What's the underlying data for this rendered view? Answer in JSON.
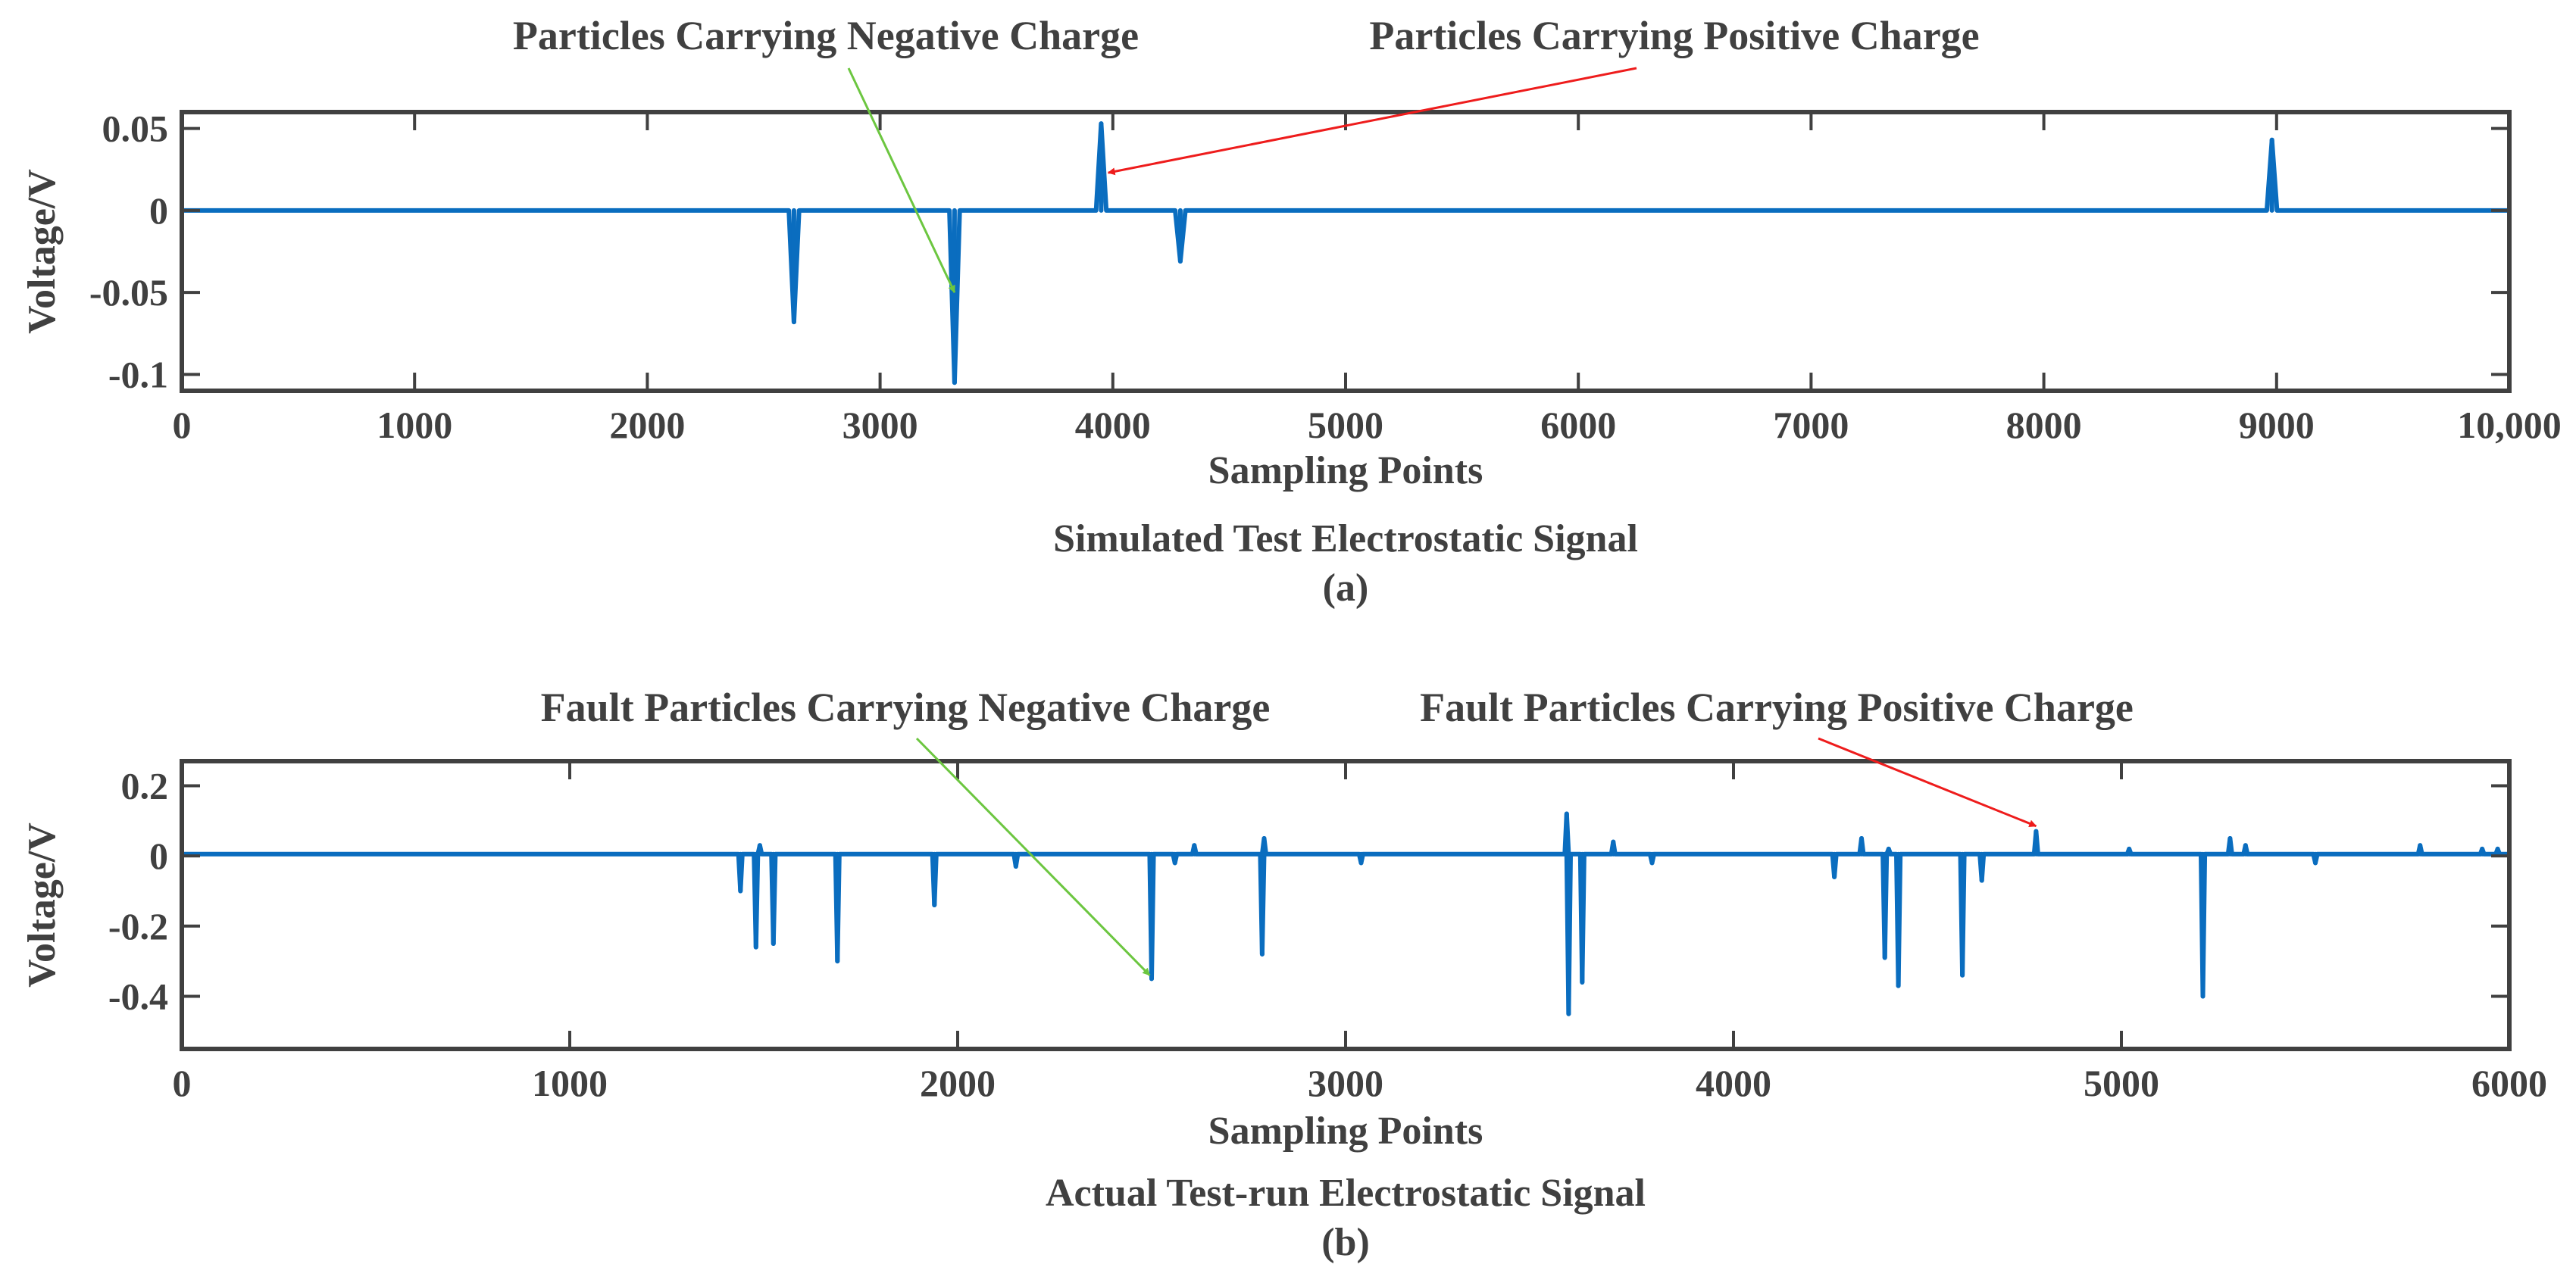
{
  "colors": {
    "signal": "#0a6dbf",
    "axis": "#404040",
    "negative_arrow": "#6cc640",
    "positive_arrow": "#ee1c1c"
  },
  "chart_data": [
    {
      "type": "line",
      "panel": "a",
      "caption": "Simulated Test Electrostatic Signal",
      "panel_label": "(a)",
      "xlabel": "Sampling Points",
      "ylabel": "Voltage/V",
      "xlim": [
        0,
        10000
      ],
      "ylim": [
        -0.11,
        0.06
      ],
      "xticks": [
        0,
        1000,
        2000,
        3000,
        4000,
        5000,
        6000,
        7000,
        8000,
        9000,
        10000
      ],
      "xtick_labels": [
        "0",
        "1000",
        "2000",
        "3000",
        "4000",
        "5000",
        "6000",
        "7000",
        "8000",
        "9000",
        "10,000"
      ],
      "yticks": [
        0.05,
        0,
        -0.05,
        -0.1
      ],
      "ytick_labels": [
        "0.05",
        "0",
        "-0.05",
        "-0.1"
      ],
      "series": [
        {
          "name": "Electrostatic signal",
          "baseline": 0,
          "pulse_width": 22,
          "pulses": [
            {
              "x": 2630,
              "y": -0.068
            },
            {
              "x": 3320,
              "y": -0.105
            },
            {
              "x": 3950,
              "y": 0.053
            },
            {
              "x": 4290,
              "y": -0.031
            },
            {
              "x": 8980,
              "y": 0.043
            }
          ]
        }
      ],
      "annotations": [
        {
          "text": "Particles Carrying Negative Charge",
          "kind": "negative",
          "target": {
            "x": 3320,
            "y": -0.05
          }
        },
        {
          "text": "Particles Carrying Positive Charge",
          "kind": "positive",
          "target": {
            "x": 3980,
            "y": 0.023
          }
        }
      ]
    },
    {
      "type": "line",
      "panel": "b",
      "caption": "Actual Test-run Electrostatic Signal",
      "panel_label": "(b)",
      "xlabel": "Sampling Points",
      "ylabel": "Voltage/V",
      "xlim": [
        0,
        6000
      ],
      "ylim": [
        -0.55,
        0.27
      ],
      "xticks": [
        0,
        1000,
        2000,
        3000,
        4000,
        5000,
        6000
      ],
      "xtick_labels": [
        "0",
        "1000",
        "2000",
        "3000",
        "4000",
        "5000",
        "6000"
      ],
      "yticks": [
        0.2,
        0,
        -0.2,
        -0.4
      ],
      "ytick_labels": [
        "0.2",
        "0",
        "-0.2",
        "-0.4"
      ],
      "series": [
        {
          "name": "Electrostatic signal",
          "baseline": 0.005,
          "pulse_width": 5,
          "pulses": [
            {
              "x": 1440,
              "y": -0.1
            },
            {
              "x": 1480,
              "y": -0.26
            },
            {
              "x": 1490,
              "y": 0.03
            },
            {
              "x": 1525,
              "y": -0.25
            },
            {
              "x": 1690,
              "y": -0.3
            },
            {
              "x": 1940,
              "y": -0.14
            },
            {
              "x": 2150,
              "y": -0.03
            },
            {
              "x": 2500,
              "y": -0.35
            },
            {
              "x": 2560,
              "y": -0.02
            },
            {
              "x": 2610,
              "y": 0.03
            },
            {
              "x": 2785,
              "y": -0.28
            },
            {
              "x": 2790,
              "y": 0.05
            },
            {
              "x": 3040,
              "y": -0.02
            },
            {
              "x": 3570,
              "y": 0.12
            },
            {
              "x": 3575,
              "y": -0.45
            },
            {
              "x": 3610,
              "y": -0.36
            },
            {
              "x": 3690,
              "y": 0.04
            },
            {
              "x": 3790,
              "y": -0.02
            },
            {
              "x": 4260,
              "y": -0.06
            },
            {
              "x": 4330,
              "y": 0.05
            },
            {
              "x": 4390,
              "y": -0.29
            },
            {
              "x": 4400,
              "y": 0.02
            },
            {
              "x": 4425,
              "y": -0.37
            },
            {
              "x": 4590,
              "y": -0.34
            },
            {
              "x": 4640,
              "y": -0.07
            },
            {
              "x": 4780,
              "y": 0.07
            },
            {
              "x": 5020,
              "y": 0.02
            },
            {
              "x": 5210,
              "y": -0.4
            },
            {
              "x": 5280,
              "y": 0.05
            },
            {
              "x": 5320,
              "y": 0.03
            },
            {
              "x": 5500,
              "y": -0.02
            },
            {
              "x": 5770,
              "y": 0.03
            },
            {
              "x": 5930,
              "y": 0.02
            },
            {
              "x": 5970,
              "y": 0.02
            }
          ]
        }
      ],
      "annotations": [
        {
          "text": "Fault Particles Carrying Negative Charge",
          "kind": "negative",
          "target": {
            "x": 2495,
            "y": -0.34
          }
        },
        {
          "text": "Fault Particles Carrying Positive Charge",
          "kind": "positive",
          "target": {
            "x": 4780,
            "y": 0.085
          }
        }
      ]
    }
  ]
}
